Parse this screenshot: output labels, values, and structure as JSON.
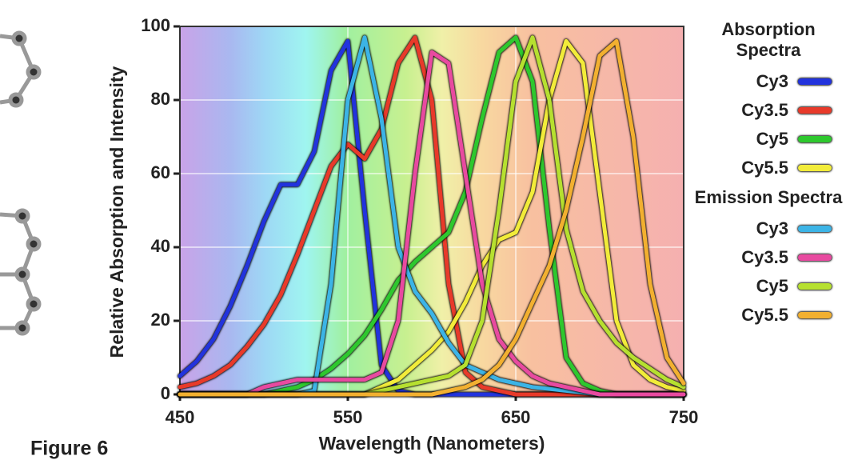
{
  "caption": "Figure 6",
  "chart_data": {
    "type": "line",
    "y_label": "Relative Absorption and Intensity",
    "x_label": "Wavelength (Nanometers)",
    "x": [
      450,
      460,
      470,
      480,
      490,
      500,
      510,
      520,
      530,
      540,
      550,
      560,
      570,
      580,
      590,
      600,
      610,
      620,
      630,
      640,
      650,
      660,
      670,
      680,
      690,
      700,
      710,
      720,
      730,
      740,
      750
    ],
    "xlim": [
      450,
      750
    ],
    "xticks": [
      450,
      550,
      650,
      750
    ],
    "ylim": [
      0,
      100
    ],
    "yticks": [
      0,
      20,
      40,
      60,
      80,
      100
    ],
    "grid": true,
    "groups": [
      {
        "title": "Absorption Spectra",
        "series": [
          {
            "name": "Cy3",
            "color": "#2233dd",
            "values": [
              5,
              9,
              15,
              24,
              35,
              47,
              57,
              57,
              66,
              88,
              96,
              50,
              8,
              1,
              0,
              0,
              0,
              0,
              0,
              0,
              0,
              0,
              0,
              0,
              0,
              0,
              0,
              0,
              0,
              0,
              0
            ]
          },
          {
            "name": "Cy3.5",
            "color": "#e83a2a",
            "values": [
              2,
              3,
              5,
              8,
              13,
              19,
              27,
              38,
              50,
              62,
              68,
              64,
              72,
              90,
              97,
              80,
              30,
              6,
              2,
              1,
              0,
              0,
              0,
              0,
              0,
              0,
              0,
              0,
              0,
              0,
              0
            ]
          },
          {
            "name": "Cy5",
            "color": "#2ec82e",
            "values": [
              0,
              0,
              0,
              0,
              0,
              0,
              1,
              2,
              4,
              7,
              11,
              16,
              23,
              31,
              36,
              40,
              44,
              55,
              75,
              93,
              97,
              85,
              45,
              10,
              3,
              1,
              0,
              0,
              0,
              0,
              0
            ]
          },
          {
            "name": "Cy5.5",
            "color": "#f2ec3a",
            "values": [
              0,
              0,
              0,
              0,
              0,
              0,
              0,
              0,
              0,
              0,
              0,
              0,
              2,
              4,
              8,
              12,
              17,
              25,
              35,
              42,
              44,
              55,
              80,
              96,
              90,
              55,
              20,
              8,
              4,
              2,
              1
            ]
          }
        ]
      },
      {
        "title": "Emission Spectra",
        "series": [
          {
            "name": "Cy3",
            "color": "#3cb4e6",
            "values": [
              0,
              0,
              0,
              0,
              0,
              0,
              0,
              0,
              1,
              30,
              80,
              97,
              75,
              40,
              28,
              22,
              14,
              8,
              6,
              4,
              3,
              2,
              1.5,
              1,
              0.5,
              0,
              0,
              0,
              0,
              0,
              0
            ]
          },
          {
            "name": "Cy3.5",
            "color": "#e84aa0",
            "values": [
              0,
              0,
              0,
              0,
              0,
              2,
              3,
              4,
              4,
              4,
              4,
              4,
              6,
              20,
              60,
              93,
              90,
              60,
              30,
              15,
              9,
              5,
              3,
              2,
              1,
              0,
              0,
              0,
              0,
              0,
              0
            ]
          },
          {
            "name": "Cy5",
            "color": "#b6e030",
            "values": [
              0,
              0,
              0,
              0,
              0,
              0,
              0,
              0,
              0,
              0,
              0,
              0,
              1,
              2,
              3,
              4,
              5,
              8,
              20,
              50,
              85,
              97,
              80,
              45,
              28,
              20,
              14,
              10,
              7,
              4,
              2
            ]
          },
          {
            "name": "Cy5.5",
            "color": "#f2b030",
            "values": [
              0,
              0,
              0,
              0,
              0,
              0,
              0,
              0,
              0,
              0,
              0,
              0,
              0,
              0,
              0,
              0,
              1,
              2,
              4,
              8,
              15,
              25,
              35,
              50,
              70,
              92,
              96,
              70,
              30,
              10,
              3
            ]
          }
        ]
      }
    ]
  }
}
